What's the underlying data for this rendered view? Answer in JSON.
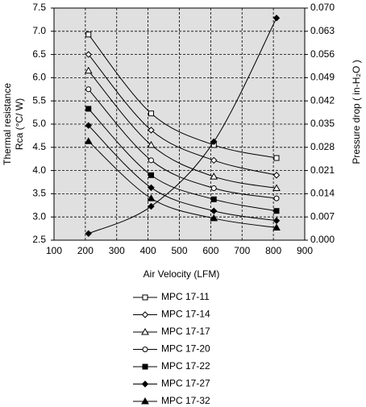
{
  "chart_data": {
    "type": "line",
    "x_label": "Air Velocity (LFM)",
    "y_label": [
      "Thermal resistance",
      "Rca (°C/ W)"
    ],
    "y2_label": "Pressure drop ( in-H₂O )",
    "x": [
      210,
      410,
      610,
      810
    ],
    "xlim": [
      100,
      900
    ],
    "xticks": [
      100,
      200,
      300,
      400,
      500,
      600,
      700,
      800,
      900
    ],
    "ylim": [
      2.5,
      7.5
    ],
    "yticks": [
      2.5,
      {
        "value": 3,
        "label": "3.0"
      },
      3.5,
      {
        "value": 4,
        "label": "4.0"
      },
      4.5,
      {
        "value": 5,
        "label": "5.0"
      },
      5.5,
      {
        "value": 6,
        "label": "6.0"
      },
      6.5,
      {
        "value": 7,
        "label": "7.0"
      },
      7.5
    ],
    "y2lim": [
      0,
      0.07
    ],
    "y2ticks": [
      {
        "value": 0,
        "label": "0.000"
      },
      0.007,
      0.014,
      0.021,
      0.028,
      0.035,
      0.042,
      0.049,
      0.056,
      0.063,
      {
        "value": 0.07,
        "label": "0.070"
      }
    ],
    "grid": true,
    "background": "#e0e0e0",
    "series": [
      {
        "name": "MPC 17-11",
        "color": "#000000",
        "marker": "square",
        "filled": false,
        "values": [
          6.93,
          5.23,
          4.55,
          4.27
        ]
      },
      {
        "name": "MPC 17-14",
        "color": "#000000",
        "marker": "diamond",
        "filled": false,
        "values": [
          6.5,
          4.87,
          4.22,
          3.9
        ]
      },
      {
        "name": "MPC 17-17",
        "color": "#000000",
        "marker": "triangle",
        "filled": false,
        "values": [
          6.15,
          4.55,
          3.87,
          3.62
        ]
      },
      {
        "name": "MPC 17-20",
        "color": "#000000",
        "marker": "circle",
        "filled": false,
        "values": [
          5.75,
          4.22,
          3.62,
          3.4
        ]
      },
      {
        "name": "MPC 17-22",
        "color": "#000000",
        "marker": "square",
        "filled": true,
        "values": [
          5.33,
          3.9,
          3.38,
          3.13
        ]
      },
      {
        "name": "MPC 17-27",
        "color": "#000000",
        "marker": "diamond",
        "filled": true,
        "values": [
          4.97,
          3.63,
          3.13,
          2.92
        ]
      },
      {
        "name": "MPC 17-32",
        "color": "#000000",
        "marker": "triangle",
        "filled": true,
        "values": [
          4.63,
          3.4,
          2.97,
          2.77
        ]
      },
      {
        "color": "#000000",
        "marker": "diamond",
        "filled": true,
        "axis": "y2",
        "values": [
          0.002,
          0.0102,
          0.0297,
          0.067
        ]
      }
    ]
  }
}
